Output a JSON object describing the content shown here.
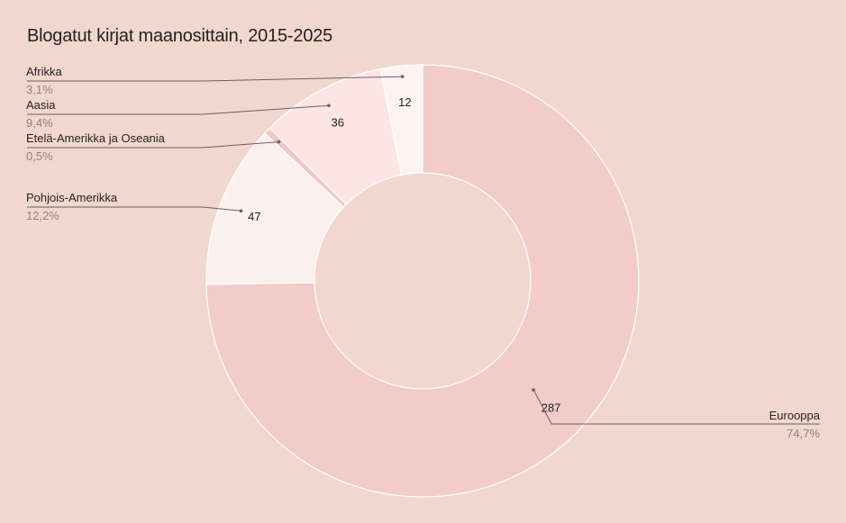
{
  "chart_data": {
    "type": "pie",
    "title": "Blogatut kirjat maanosittain, 2015-2025",
    "donut": true,
    "slices": [
      {
        "label": "Eurooppa",
        "value": 287,
        "value_label": "287",
        "percent_label": "74,7%",
        "color": "#f2cbcb"
      },
      {
        "label": "Pohjois-Amerikka",
        "value": 47,
        "value_label": "47",
        "percent_label": "12,2%",
        "color": "#fcf0ef"
      },
      {
        "label": "Etelä-Amerikka ja Oseania",
        "value": 2,
        "value_label": "",
        "percent_label": "0,5%",
        "color": "#f0c6c6"
      },
      {
        "label": "Aasia",
        "value": 36,
        "value_label": "36",
        "percent_label": "9,4%",
        "color": "#fde5e4"
      },
      {
        "label": "Afrikka",
        "value": 12,
        "value_label": "12",
        "percent_label": "3,1%",
        "color": "#fdf3f2"
      }
    ]
  }
}
